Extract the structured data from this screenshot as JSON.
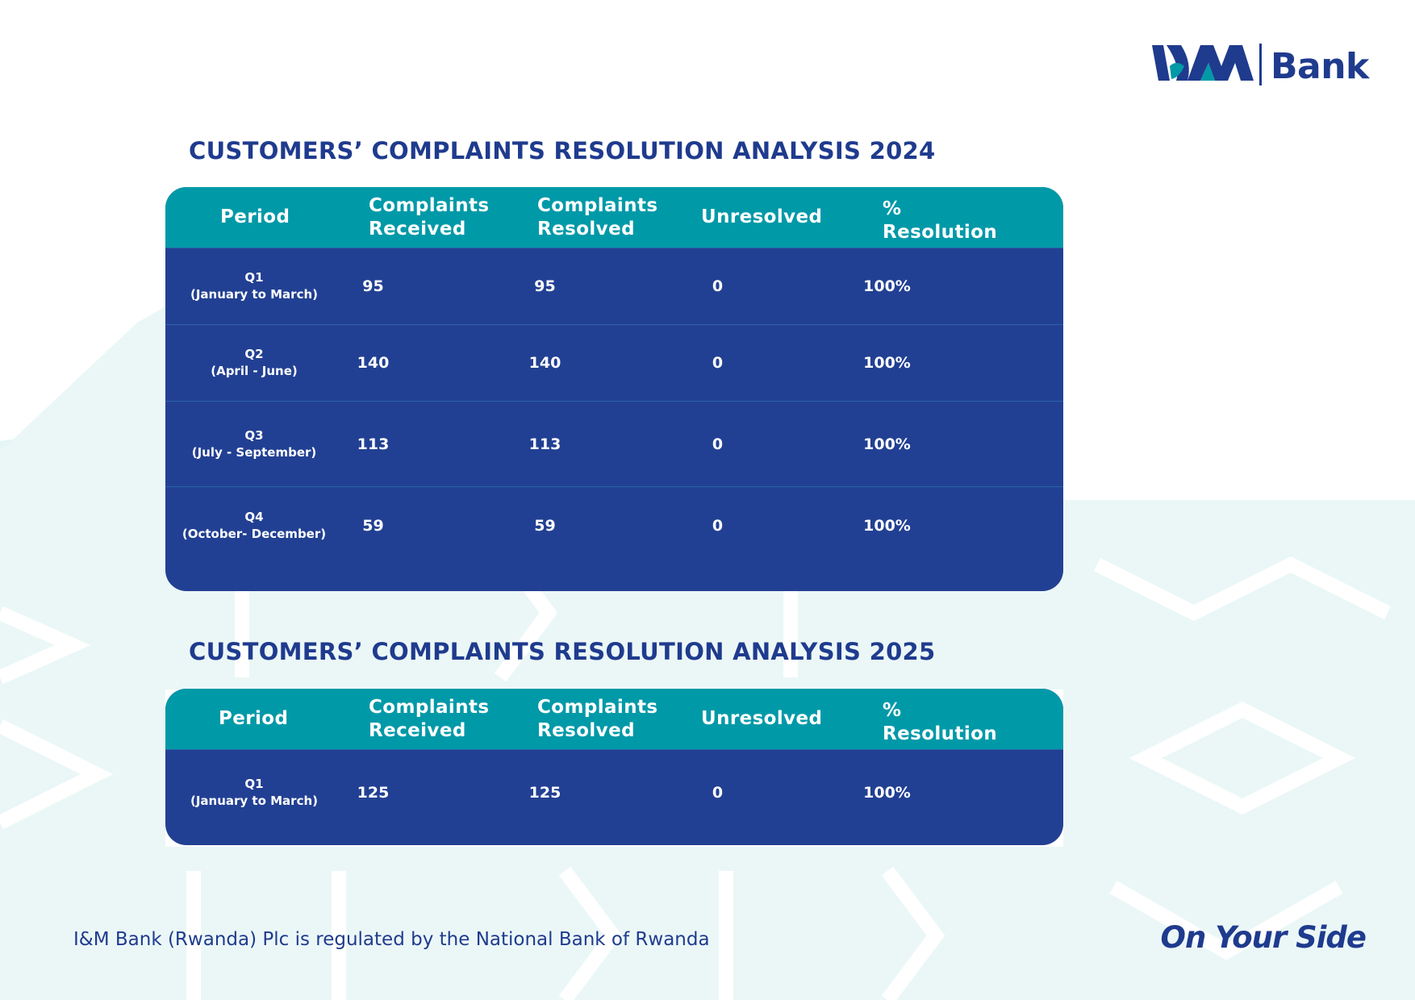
{
  "brand": {
    "logo_name": "Bank",
    "colors": {
      "navy": "#1f3b8e",
      "teal": "#0099a8",
      "table_body": "#1b3a8f",
      "pattern": "#e8f6f6"
    }
  },
  "tables": [
    {
      "title": "CUSTOMERS’ COMPLAINTS RESOLUTION ANALYSIS 2024",
      "headers": [
        "Period",
        "Complaints\nReceived",
        "Complaints\nResolved",
        "Unresolved",
        "%\nResolution"
      ],
      "rows": [
        {
          "quarter": "Q1",
          "range": "(January to March)",
          "received": "95",
          "resolved": "95",
          "unresolved": "0",
          "resolution": "100%"
        },
        {
          "quarter": "Q2",
          "range": "(April - June)",
          "received": "140",
          "resolved": "140",
          "unresolved": "0",
          "resolution": "100%"
        },
        {
          "quarter": "Q3",
          "range": "(July - September)",
          "received": "113",
          "resolved": "113",
          "unresolved": "0",
          "resolution": "100%"
        },
        {
          "quarter": "Q4",
          "range": "(October- December)",
          "received": "59",
          "resolved": "59",
          "unresolved": "0",
          "resolution": "100%"
        }
      ]
    },
    {
      "title": "CUSTOMERS’ COMPLAINTS RESOLUTION ANALYSIS 2025",
      "headers": [
        "Period",
        "Complaints\nReceived",
        "Complaints\nResolved",
        "Unresolved",
        "%\nResolution"
      ],
      "rows": [
        {
          "quarter": "Q1",
          "range": "(January to March)",
          "received": "125",
          "resolved": "125",
          "unresolved": "0",
          "resolution": "100%"
        }
      ]
    }
  ],
  "footer": {
    "regulation": "I&M Bank (Rwanda) Plc is regulated by the National Bank of Rwanda",
    "tagline": "On Your Side"
  }
}
